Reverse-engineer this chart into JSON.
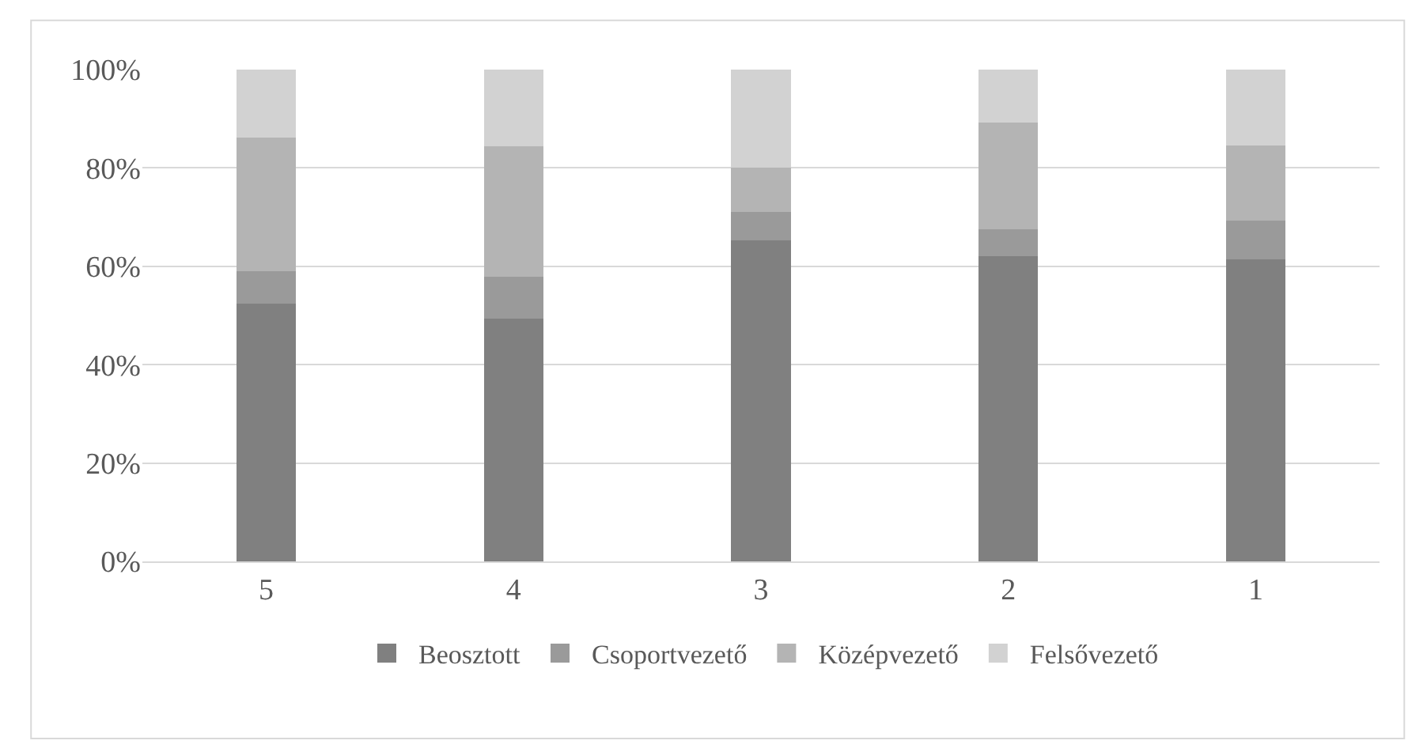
{
  "chart_data": {
    "type": "bar",
    "stacked": true,
    "categories": [
      "5",
      "4",
      "3",
      "2",
      "1"
    ],
    "series": [
      {
        "name": "Beosztott",
        "color": "#808080",
        "values": [
          52.4,
          49.3,
          65.2,
          62.0,
          61.4
        ]
      },
      {
        "name": "Csoportvezető",
        "color": "#9a9a9a",
        "values": [
          6.6,
          8.5,
          5.8,
          5.6,
          7.9
        ]
      },
      {
        "name": "Középvezető",
        "color": "#b4b4b4",
        "values": [
          27.2,
          26.6,
          9.1,
          21.6,
          15.3
        ]
      },
      {
        "name": "Felsővezető",
        "color": "#d2d2d2",
        "values": [
          13.8,
          15.6,
          19.9,
          10.8,
          15.4
        ]
      }
    ],
    "ylim": [
      0,
      100
    ],
    "yticks": [
      {
        "value": 0,
        "label": "0%"
      },
      {
        "value": 20,
        "label": "20%"
      },
      {
        "value": 40,
        "label": "40%"
      },
      {
        "value": 60,
        "label": "60%"
      },
      {
        "value": 80,
        "label": "80%"
      },
      {
        "value": 100,
        "label": "100%"
      }
    ],
    "grid": "y",
    "legend": "bottom"
  }
}
